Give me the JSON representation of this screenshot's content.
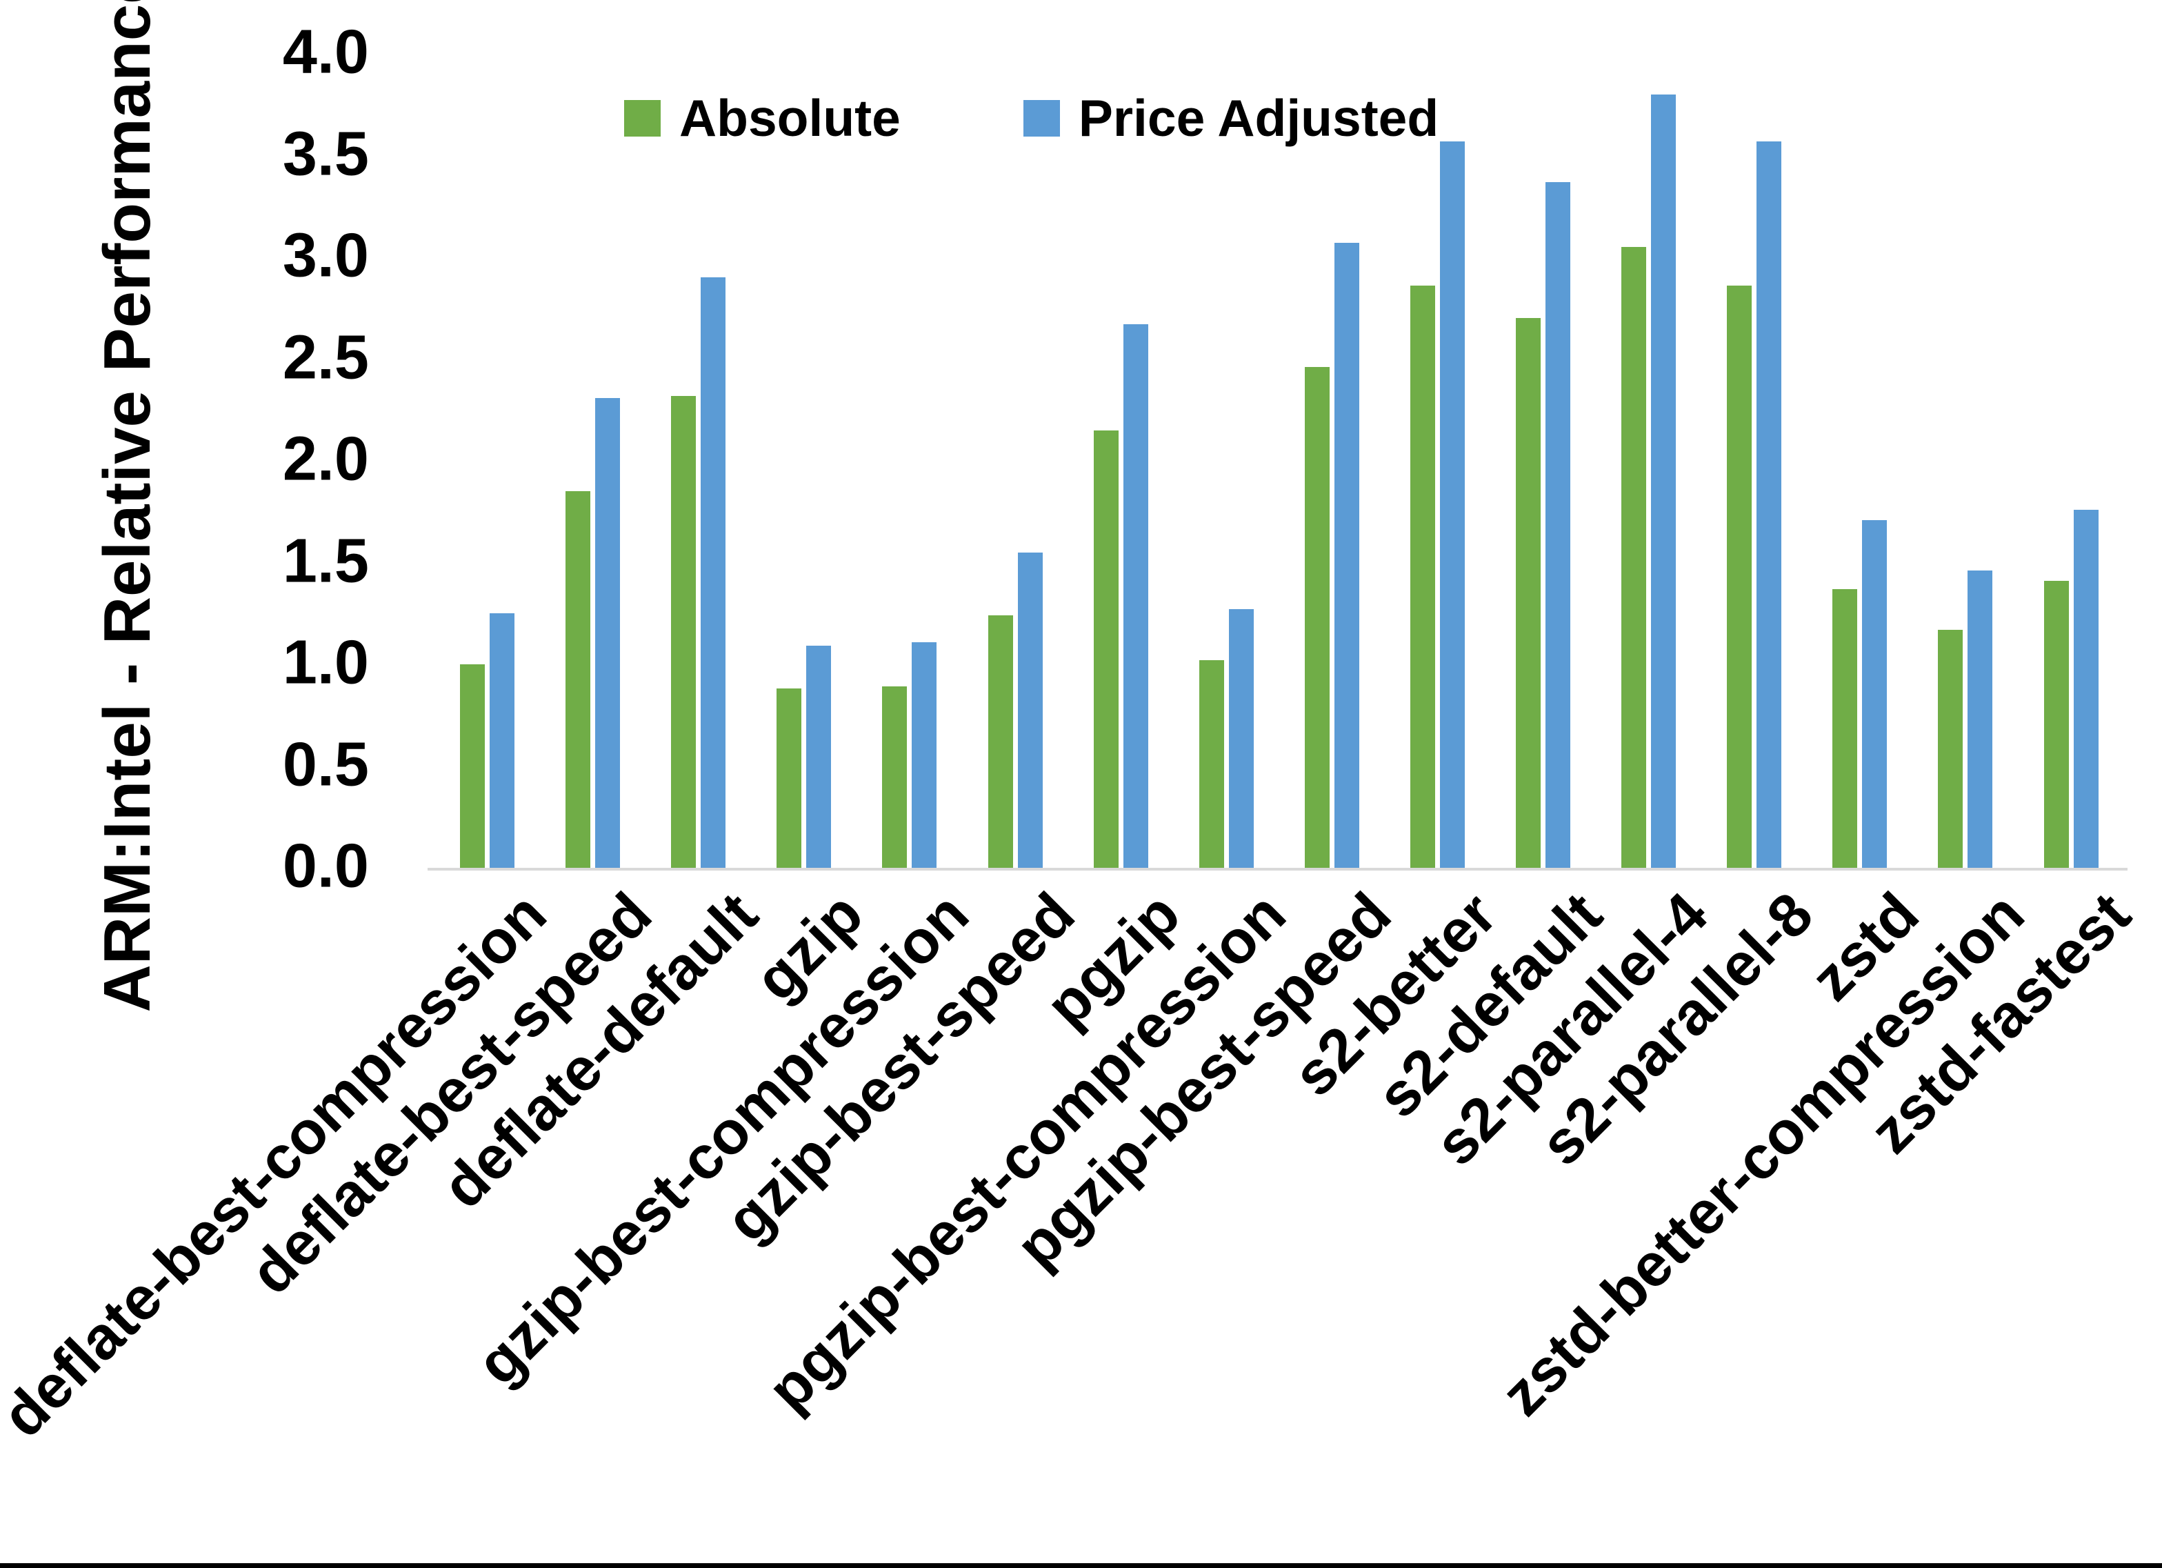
{
  "figure": {
    "background": "#FFFFFF",
    "bottom_border_color": "#000000",
    "axis_line_color": "#D9D9D9",
    "text_color": "#000000"
  },
  "chart_data": {
    "type": "bar",
    "title": "",
    "xlabel": "",
    "ylabel": "ARM:Intel - Relative Performance",
    "ylim": [
      0.0,
      4.0
    ],
    "ytick_step": 0.5,
    "yticks": [
      "0.0",
      "0.5",
      "1.0",
      "1.5",
      "2.0",
      "2.5",
      "3.0",
      "3.5",
      "4.0"
    ],
    "grid": false,
    "legend_position": "top-center",
    "categories": [
      "deflate-best-compression",
      "deflate-best-speed",
      "deflate-default",
      "gzip",
      "gzip-best-compression",
      "gzip-best-speed",
      "pgzip",
      "pgzip-best-compression",
      "pgzip-best-speed",
      "s2-better",
      "s2-default",
      "s2-parallel-4",
      "s2-parallel-8",
      "zstd",
      "zstd-better-compression",
      "zstd-fastest"
    ],
    "series": [
      {
        "name": "Absolute",
        "color": "#70AD47",
        "values": [
          1.0,
          1.85,
          2.32,
          0.88,
          0.89,
          1.24,
          2.15,
          1.02,
          2.46,
          2.86,
          2.7,
          3.05,
          2.86,
          1.37,
          1.17,
          1.41
        ]
      },
      {
        "name": "Price Adjusted",
        "color": "#5B9BD5",
        "values": [
          1.25,
          2.31,
          2.9,
          1.09,
          1.11,
          1.55,
          2.67,
          1.27,
          3.07,
          3.57,
          3.37,
          3.8,
          3.57,
          1.71,
          1.46,
          1.76
        ]
      }
    ]
  }
}
